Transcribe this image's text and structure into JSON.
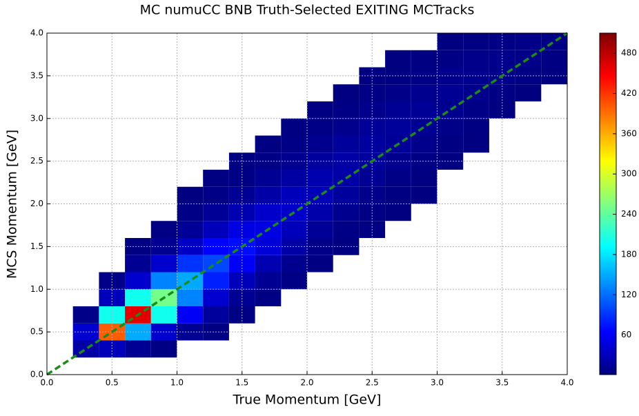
{
  "chart_data": {
    "type": "heatmap",
    "title": "MC numuCC BNB Truth-Selected EXITING MCTracks",
    "xlabel": "True Momentum [GeV]",
    "ylabel": "MCS Momentum [GeV]",
    "xbins": [
      0,
      0.2,
      0.4,
      0.6,
      0.8,
      1.0,
      1.2,
      1.4,
      1.6,
      1.8,
      2.0,
      2.2,
      2.4,
      2.6,
      2.8,
      3.0,
      3.2,
      3.4,
      3.6,
      3.8,
      4.0
    ],
    "ybins": [
      0,
      0.2,
      0.4,
      0.6,
      0.8,
      1.0,
      1.2,
      1.4,
      1.6,
      1.8,
      2.0,
      2.2,
      2.4,
      2.6,
      2.8,
      3.0,
      3.2,
      3.4,
      3.6,
      3.8,
      4.0
    ],
    "values": [
      [
        0,
        0,
        0,
        0,
        0,
        0,
        0,
        0,
        0,
        0,
        0,
        0,
        0,
        0,
        0,
        0,
        0,
        0,
        0,
        0
      ],
      [
        0,
        20,
        30,
        10,
        3,
        0,
        0,
        0,
        0,
        0,
        0,
        0,
        0,
        0,
        0,
        0,
        0,
        0,
        0,
        0
      ],
      [
        0,
        40,
        400,
        150,
        40,
        10,
        3,
        0,
        0,
        0,
        0,
        0,
        0,
        0,
        0,
        0,
        0,
        0,
        0,
        0
      ],
      [
        0,
        5,
        200,
        460,
        200,
        60,
        15,
        3,
        0,
        0,
        0,
        0,
        0,
        0,
        0,
        0,
        0,
        0,
        0,
        0
      ],
      [
        0,
        0,
        30,
        200,
        250,
        130,
        40,
        10,
        3,
        0,
        0,
        0,
        0,
        0,
        0,
        0,
        0,
        0,
        0,
        0
      ],
      [
        0,
        0,
        5,
        40,
        130,
        150,
        80,
        30,
        10,
        3,
        0,
        0,
        0,
        0,
        0,
        0,
        0,
        0,
        0,
        0
      ],
      [
        0,
        0,
        0,
        10,
        40,
        90,
        100,
        60,
        25,
        8,
        2,
        0,
        0,
        0,
        0,
        0,
        0,
        0,
        0,
        0
      ],
      [
        0,
        0,
        0,
        2,
        10,
        35,
        65,
        70,
        45,
        20,
        6,
        2,
        0,
        0,
        0,
        0,
        0,
        0,
        0,
        0
      ],
      [
        0,
        0,
        0,
        0,
        3,
        12,
        30,
        50,
        50,
        30,
        12,
        4,
        2,
        0,
        0,
        0,
        0,
        0,
        0,
        0
      ],
      [
        0,
        0,
        0,
        0,
        0,
        4,
        12,
        25,
        38,
        38,
        22,
        8,
        3,
        1,
        0,
        0,
        0,
        0,
        0,
        0
      ],
      [
        0,
        0,
        0,
        0,
        0,
        1,
        4,
        10,
        20,
        30,
        28,
        15,
        6,
        2,
        1,
        0,
        0,
        0,
        0,
        0
      ],
      [
        0,
        0,
        0,
        0,
        0,
        0,
        2,
        4,
        10,
        18,
        24,
        20,
        10,
        4,
        1,
        0,
        0,
        0,
        0,
        0
      ],
      [
        0,
        0,
        0,
        0,
        0,
        0,
        0,
        2,
        4,
        9,
        16,
        20,
        15,
        8,
        3,
        1,
        0,
        0,
        0,
        0
      ],
      [
        0,
        0,
        0,
        0,
        0,
        0,
        0,
        0,
        2,
        4,
        8,
        14,
        16,
        12,
        6,
        2,
        1,
        0,
        0,
        0
      ],
      [
        0,
        0,
        0,
        0,
        0,
        0,
        0,
        0,
        0,
        2,
        4,
        7,
        12,
        14,
        10,
        5,
        2,
        0,
        0,
        0
      ],
      [
        0,
        0,
        0,
        0,
        0,
        0,
        0,
        0,
        0,
        0,
        2,
        3,
        6,
        10,
        12,
        8,
        4,
        1,
        0,
        0
      ],
      [
        0,
        0,
        0,
        0,
        0,
        0,
        0,
        0,
        0,
        0,
        0,
        1,
        3,
        5,
        8,
        10,
        7,
        3,
        1,
        0
      ],
      [
        0,
        0,
        0,
        0,
        0,
        0,
        0,
        0,
        0,
        0,
        0,
        0,
        1,
        2,
        4,
        7,
        8,
        6,
        3,
        1
      ],
      [
        0,
        0,
        0,
        0,
        0,
        0,
        0,
        0,
        0,
        0,
        0,
        0,
        0,
        1,
        2,
        3,
        6,
        7,
        5,
        2
      ],
      [
        0,
        0,
        0,
        0,
        0,
        0,
        0,
        0,
        0,
        0,
        0,
        0,
        0,
        0,
        0,
        1,
        2,
        4,
        5,
        4
      ]
    ],
    "colormap": "jet",
    "xlim": [
      0,
      4
    ],
    "ylim": [
      0,
      4
    ],
    "clim": [
      1,
      510
    ],
    "xticks": [
      {
        "value": 0,
        "label": "0.0"
      },
      {
        "value": 0.5,
        "label": "0.5"
      },
      {
        "value": 1,
        "label": "1.0"
      },
      {
        "value": 1.5,
        "label": "1.5"
      },
      {
        "value": 2,
        "label": "2.0"
      },
      {
        "value": 2.5,
        "label": "2.5"
      },
      {
        "value": 3,
        "label": "3.0"
      },
      {
        "value": 3.5,
        "label": "3.5"
      },
      {
        "value": 4,
        "label": "4.0"
      }
    ],
    "yticks": [
      {
        "value": 0,
        "label": "0.0"
      },
      {
        "value": 0.5,
        "label": "0.5"
      },
      {
        "value": 1,
        "label": "1.0"
      },
      {
        "value": 1.5,
        "label": "1.5"
      },
      {
        "value": 2,
        "label": "2.0"
      },
      {
        "value": 2.5,
        "label": "2.5"
      },
      {
        "value": 3,
        "label": "3.0"
      },
      {
        "value": 3.5,
        "label": "3.5"
      },
      {
        "value": 4,
        "label": "4.0"
      }
    ],
    "cticks": [
      60,
      120,
      180,
      240,
      300,
      360,
      420,
      480
    ],
    "grid": true,
    "diagonal_color": "#1a8c1a"
  }
}
